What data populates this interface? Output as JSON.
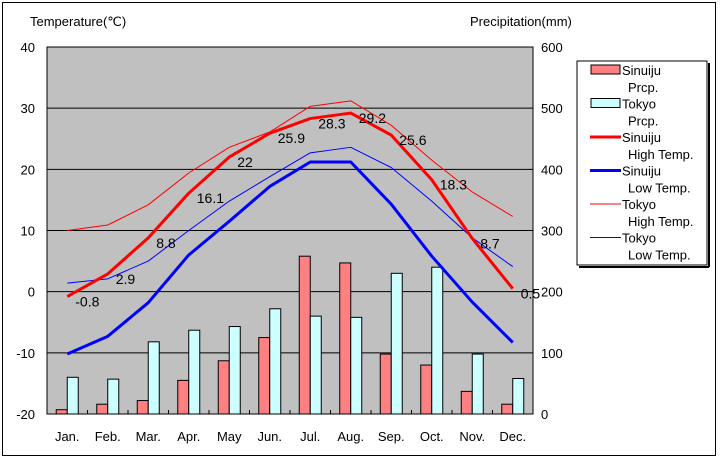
{
  "chart_data": {
    "type": "bar+line",
    "title": "",
    "ylabel_left": "Temperature(℃)",
    "ylabel_right": "Precipitation(mm)",
    "ylim_left": [
      -20,
      40
    ],
    "ylim_right": [
      0,
      600
    ],
    "yticks_left": [
      "40",
      "30",
      "20",
      "10",
      "0",
      "-10",
      "-20"
    ],
    "yticks_right": [
      "600",
      "500",
      "400",
      "300",
      "200",
      "100",
      "0"
    ],
    "categories": [
      "Jan.",
      "Feb.",
      "Mar.",
      "Apr.",
      "May",
      "Jun.",
      "Jul.",
      "Aug.",
      "Sep.",
      "Oct.",
      "Nov.",
      "Dec."
    ],
    "grid": true,
    "legend_position": "right",
    "colors": {
      "plot_bg": "#c0c0c0",
      "sinuiju_prcp": "#ff8080",
      "tokyo_prcp": "#ccffff",
      "sinuiju_high": "#ff0000",
      "sinuiju_low": "#0000ff",
      "tokyo_high": "#ff0000",
      "tokyo_low": "#0000ff"
    },
    "series": [
      {
        "name": "Sinuiju Prcp.",
        "legend": [
          "Sinuiju",
          "Prcp."
        ],
        "kind": "bar",
        "axis": "right",
        "values": [
          7,
          16,
          22,
          55,
          87,
          125,
          258,
          247,
          98,
          80,
          37,
          16
        ]
      },
      {
        "name": "Tokyo Prcp.",
        "legend": [
          "Tokyo",
          "Prcp."
        ],
        "kind": "bar",
        "axis": "right",
        "values": [
          60,
          57,
          118,
          137,
          143,
          172,
          160,
          158,
          230,
          240,
          98,
          58
        ]
      },
      {
        "name": "Sinuiju High Temp.",
        "legend": [
          "Sinuiju",
          "High Temp."
        ],
        "kind": "line",
        "axis": "left",
        "width": 3,
        "labels": true,
        "values": [
          -0.8,
          2.9,
          8.8,
          16.1,
          22,
          25.9,
          28.3,
          29.2,
          25.6,
          18.3,
          8.7,
          0.5
        ]
      },
      {
        "name": "Sinuiju Low Temp.",
        "legend": [
          "Sinuiju",
          "Low Temp."
        ],
        "kind": "line",
        "axis": "left",
        "width": 3,
        "values": [
          -10.2,
          -7.3,
          -1.8,
          6.0,
          11.5,
          17.2,
          21.2,
          21.2,
          14.3,
          5.8,
          -1.7,
          -8.3
        ]
      },
      {
        "name": "Tokyo High Temp.",
        "legend": [
          "Tokyo",
          "High Temp."
        ],
        "kind": "line",
        "axis": "left",
        "width": 1,
        "values": [
          10.0,
          10.9,
          14.2,
          19.4,
          23.6,
          26.1,
          30.3,
          31.2,
          27.2,
          21.5,
          16.3,
          12.3
        ]
      },
      {
        "name": "Tokyo Low Temp.",
        "legend": [
          "Tokyo",
          "Low Temp."
        ],
        "kind": "line",
        "axis": "left",
        "width": 1,
        "values": [
          1.4,
          2.1,
          5.0,
          10.0,
          14.8,
          18.8,
          22.7,
          23.6,
          20.3,
          14.8,
          8.8,
          4.1
        ]
      }
    ]
  }
}
